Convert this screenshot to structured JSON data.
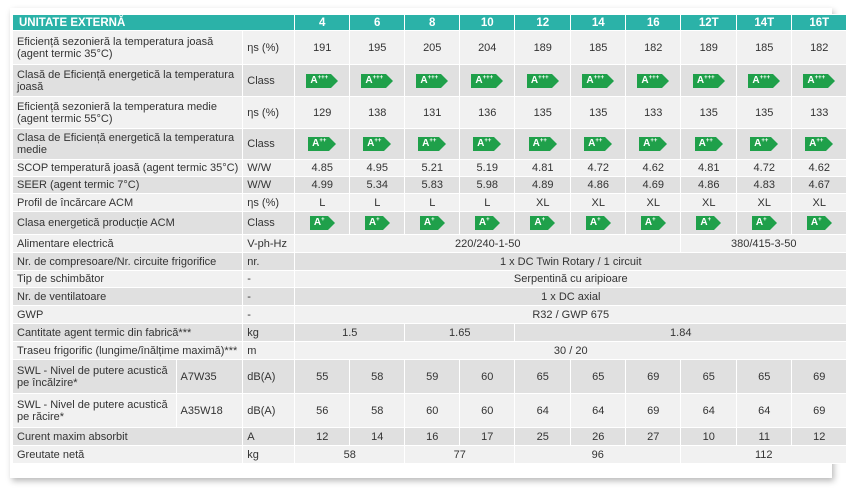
{
  "header": {
    "title": "UNITATE EXTERNĂ",
    "models": [
      "4",
      "6",
      "8",
      "10",
      "12",
      "14",
      "16",
      "12T",
      "14T",
      "16T"
    ]
  },
  "rows": {
    "eff_low": {
      "label": "Eficiență sezonieră la temperatura joasă (agent termic 35°C)",
      "unit": "ηs (%)",
      "values": [
        "191",
        "195",
        "205",
        "204",
        "189",
        "185",
        "182",
        "189",
        "185",
        "182"
      ]
    },
    "class_low": {
      "label": "Clasă de Eficiență energetică la temperatura joasă",
      "unit": "Class",
      "values": [
        "A+++",
        "A+++",
        "A+++",
        "A+++",
        "A+++",
        "A+++",
        "A+++",
        "A+++",
        "A+++",
        "A+++"
      ]
    },
    "eff_med": {
      "label": "Eficiență sezonieră la temperatura medie (agent termic 55°C)",
      "unit": "ηs (%)",
      "values": [
        "129",
        "138",
        "131",
        "136",
        "135",
        "135",
        "133",
        "135",
        "135",
        "133"
      ]
    },
    "class_med": {
      "label": "Clasa de Eficiență energetică la temperatura medie",
      "unit": "Class",
      "values": [
        "A++",
        "A++",
        "A++",
        "A++",
        "A++",
        "A++",
        "A++",
        "A++",
        "A++",
        "A++"
      ]
    },
    "scop": {
      "label": "SCOP temperatură joasă (agent termic 35°C)",
      "unit": "W/W",
      "values": [
        "4.85",
        "4.95",
        "5.21",
        "5.19",
        "4.81",
        "4.72",
        "4.62",
        "4.81",
        "4.72",
        "4.62"
      ]
    },
    "seer": {
      "label": "SEER (agent termic 7°C)",
      "unit": "W/W",
      "values": [
        "4.99",
        "5.34",
        "5.83",
        "5.98",
        "4.89",
        "4.86",
        "4.69",
        "4.86",
        "4.83",
        "4.67"
      ]
    },
    "profile": {
      "label": "Profil de încărcare ACM",
      "unit": "ηs (%)",
      "values": [
        "L",
        "L",
        "L",
        "L",
        "XL",
        "XL",
        "XL",
        "XL",
        "XL",
        "XL"
      ]
    },
    "class_acm": {
      "label": "Clasa energetică producție ACM",
      "unit": "Class",
      "values": [
        "A+",
        "A+",
        "A+",
        "A+",
        "A+",
        "A+",
        "A+",
        "A+",
        "A+",
        "A+"
      ]
    },
    "power": {
      "label": "Alimentare electrică",
      "unit": "V-ph-Hz",
      "single": "220/240-1-50",
      "three": "380/415-3-50"
    },
    "compressors": {
      "label": "Nr. de compresoare/Nr. circuite frigorifice",
      "unit": "nr.",
      "value": "1 x DC Twin Rotary / 1 circuit"
    },
    "exchanger": {
      "label": "Tip de schimbător",
      "unit": "-",
      "value": "Serpentină cu aripioare"
    },
    "fans": {
      "label": "Nr. de ventilatoare",
      "unit": "-",
      "value": "1 x DC axial"
    },
    "gwp": {
      "label": "GWP",
      "unit": "-",
      "value": "R32 / GWP 675"
    },
    "charge": {
      "label": "Cantitate agent termic din fabrică***",
      "unit": "kg",
      "values": [
        "1.5",
        "1.65",
        "1.84"
      ]
    },
    "piping": {
      "label": "Traseu frigorific (lungime/înălțime maximă)***",
      "unit": "m",
      "value": "30 / 20"
    },
    "swl_heat": {
      "label": "SWL - Nivel de putere acustică pe încălzire*",
      "sub": "A7W35",
      "unit": "dB(A)",
      "values": [
        "55",
        "58",
        "59",
        "60",
        "65",
        "65",
        "69",
        "65",
        "65",
        "69"
      ]
    },
    "swl_cool": {
      "label": "SWL - Nivel de putere acustică pe răcire*",
      "sub": "A35W18",
      "unit": "dB(A)",
      "values": [
        "56",
        "58",
        "60",
        "60",
        "64",
        "64",
        "69",
        "64",
        "64",
        "69"
      ]
    },
    "current": {
      "label": "Curent maxim absorbit",
      "unit": "A",
      "values": [
        "12",
        "14",
        "16",
        "17",
        "25",
        "26",
        "27",
        "10",
        "11",
        "12"
      ]
    },
    "weight": {
      "label": "Greutate netă",
      "unit": "kg",
      "values": [
        "58",
        "77",
        "96",
        "112"
      ]
    }
  },
  "colors": {
    "header": "#2bb2a8",
    "badge": "#1fa04a",
    "row_light": "#f1f1f1",
    "row_dark": "#e0e0e0"
  }
}
